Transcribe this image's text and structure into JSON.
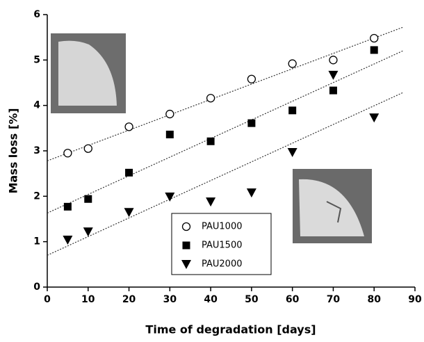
{
  "chart_data": {
    "type": "scatter",
    "xlabel": "Time of degradation [days]",
    "ylabel": "Mass loss [%]",
    "x": [
      5,
      10,
      20,
      30,
      40,
      50,
      60,
      70,
      80
    ],
    "series": [
      {
        "name": "PAU1000",
        "color": "#000000",
        "marker": "circle-open",
        "values": [
          2.95,
          3.05,
          3.53,
          3.81,
          4.16,
          4.58,
          4.92,
          5.0,
          5.48
        ]
      },
      {
        "name": "PAU1500",
        "color": "#000000",
        "marker": "square",
        "values": [
          1.77,
          1.94,
          2.52,
          3.36,
          3.21,
          3.61,
          3.89,
          4.33,
          5.22
        ]
      },
      {
        "name": "PAU2000",
        "color": "#000000",
        "marker": "triangle-down",
        "values": [
          1.04,
          1.22,
          1.65,
          1.99,
          1.88,
          2.08,
          2.97,
          4.67,
          3.73
        ]
      }
    ],
    "trendlines": [
      {
        "x": [
          0,
          87
        ],
        "values": [
          2.78,
          5.72
        ]
      },
      {
        "x": [
          0,
          87
        ],
        "values": [
          1.63,
          5.2
        ]
      },
      {
        "x": [
          0,
          87
        ],
        "values": [
          0.7,
          4.28
        ]
      }
    ],
    "xlim": [
      0,
      90
    ],
    "xticks": [
      0,
      10,
      20,
      30,
      40,
      50,
      60,
      70,
      80,
      90
    ],
    "ylim": [
      0,
      6
    ],
    "yticks": [
      0,
      1,
      2,
      3,
      4,
      5,
      6
    ]
  }
}
